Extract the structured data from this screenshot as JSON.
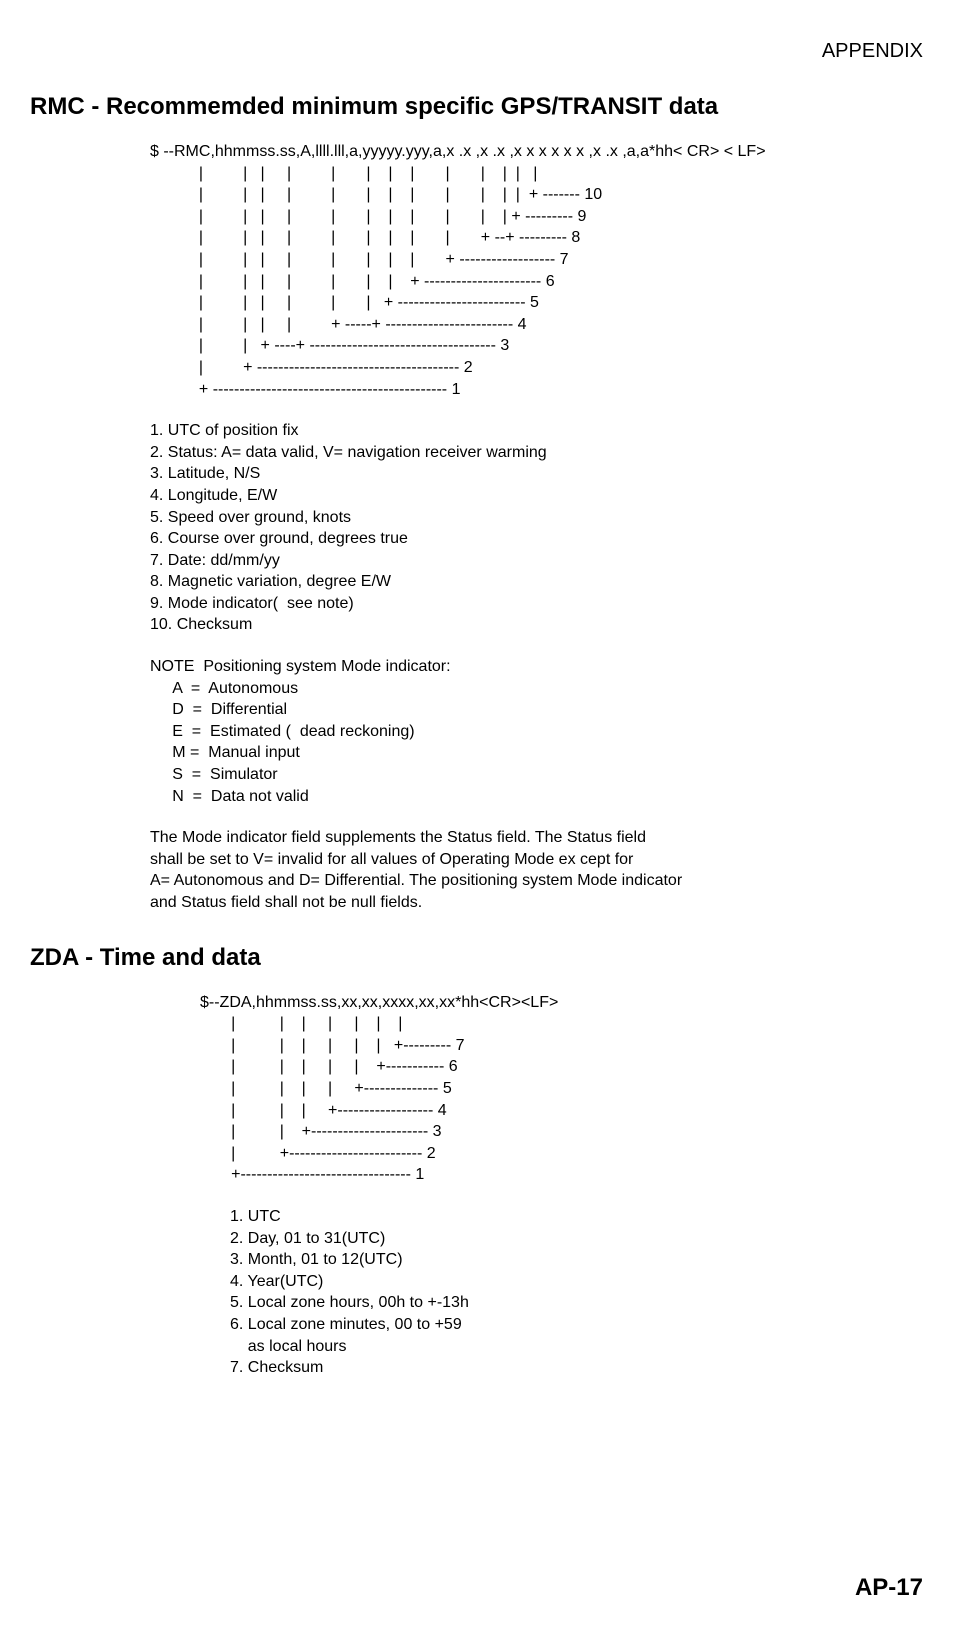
{
  "header": {
    "top_right": "APPENDIX"
  },
  "rmc": {
    "title": "RMC - Recommemded minimum specific GPS/TRANSIT data",
    "diagram": "$ --RMC,hhmmss.ss,A,llll.lll,a,yyyyy.yyy,a,x .x ,x .x ,x x x x x x ,x .x ,a,a*hh< CR> < LF>\n           |         |   |     |         |       |    |    |       |       |    |  |   |\n           |         |   |     |         |       |    |    |       |       |    |  |  + ------- 10\n           |         |   |     |         |       |    |    |       |       |    | + --------- 9\n           |         |   |     |         |       |    |    |       |       + --+ --------- 8\n           |         |   |     |         |       |    |    |       + ------------------ 7\n           |         |   |     |         |       |    |    + ---------------------- 6\n           |         |   |     |         |       |   + ------------------------ 5\n           |         |   |     |         + -----+ ------------------------ 4\n           |         |   + ----+ ----------------------------------- 3\n           |         + -------------------------------------- 2\n           + -------------------------------------------- 1",
    "items": [
      "1. UTC of position fix",
      "2. Status: A= data valid, V= navigation receiver warming",
      "3. Latitude, N/S",
      "4. Longitude, E/W",
      "5. Speed over ground, knots",
      "6. Course over ground, degrees true",
      "7. Date: dd/mm/yy",
      "8. Magnetic variation, degree E/W",
      "9. Mode indicator(  see note)",
      "10. Checksum"
    ],
    "note_title": "NOTE  Positioning system Mode indicator:",
    "note_lines": [
      "     A  =  Autonomous",
      "     D  =  Differential",
      "     E  =  Estimated (  dead reckoning)",
      "     M =  Manual input",
      "     S  =  Simulator",
      "     N  =  Data not valid"
    ],
    "paragraph": "The Mode indicator field supplements the Status field. The Status field\nshall be set to V= invalid for all values of Operating Mode ex cept for\nA= Autonomous and D= Differential. The positioning system Mode indicator\nand Status field shall not be null fields."
  },
  "zda": {
    "title": "ZDA - Time and data",
    "diagram": "$--ZDA,hhmmss.ss,xx,xx,xxxx,xx,xx*hh<CR><LF>\n       |          |    |     |     |    |    |\n       |          |    |     |     |    |   +--------- 7\n       |          |    |     |     |    +----------- 6\n       |          |    |     |     +-------------- 5\n       |          |    |     +------------------ 4\n       |          |    +---------------------- 3\n       |          +------------------------- 2\n       +-------------------------------- 1",
    "items": [
      "1. UTC",
      "2. Day, 01 to 31(UTC)",
      "3. Month, 01 to 12(UTC)",
      "4. Year(UTC)",
      "5. Local zone hours, 00h to +-13h",
      "6. Local zone minutes, 00 to +59",
      "    as local hours",
      "7. Checksum"
    ]
  },
  "footer": {
    "page_number": "AP-17"
  }
}
